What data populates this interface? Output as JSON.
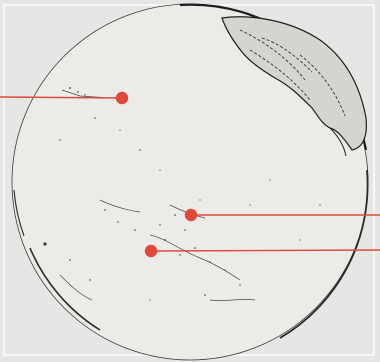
{
  "map": {
    "type": "orthographic-globe",
    "colors": {
      "background": "#e6e6e4",
      "globe_fill": "#ecebe8",
      "outline": "#2b2b2b",
      "land_fill": "#d9d7d2",
      "marker": "#e0483b",
      "leader_line": "#e0483b"
    },
    "markers": [
      {
        "id": "marker-1",
        "leader_direction": "left"
      },
      {
        "id": "marker-2",
        "leader_direction": "right"
      },
      {
        "id": "marker-3",
        "leader_direction": "right"
      }
    ]
  }
}
